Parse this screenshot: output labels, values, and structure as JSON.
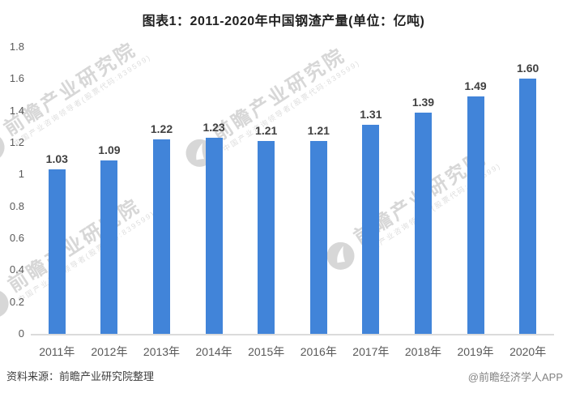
{
  "title": "图表1：2011-2020年中国钢渣产量(单位：亿吨)",
  "chart_data": {
    "type": "bar",
    "categories": [
      "2011年",
      "2012年",
      "2013年",
      "2014年",
      "2015年",
      "2016年",
      "2017年",
      "2018年",
      "2019年",
      "2020年"
    ],
    "values": [
      1.03,
      1.09,
      1.22,
      1.23,
      1.21,
      1.21,
      1.31,
      1.39,
      1.49,
      1.6
    ],
    "value_labels": [
      "1.03",
      "1.09",
      "1.22",
      "1.23",
      "1.21",
      "1.21",
      "1.31",
      "1.39",
      "1.49",
      "1.60"
    ],
    "title": "图表1：2011-2020年中国钢渣产量(单位：亿吨)",
    "xlabel": "",
    "ylabel": "",
    "ylim": [
      0,
      1.8
    ],
    "ytick_labels": [
      "0",
      "0.2",
      "0.4",
      "0.6",
      "0.8",
      "1",
      "1.2",
      "1.4",
      "1.6",
      "1.8"
    ],
    "grid": false,
    "legend": false,
    "bar_color": "#4184d9"
  },
  "watermark": {
    "main": "前瞻产业研究院",
    "sub": "中国产业咨询领导者(股票代码:839599)",
    "logo": "qianzhan-bird-logo"
  },
  "footer": {
    "source": "资料来源：前瞻产业研究院整理",
    "credit": "@前瞻经济学人APP"
  },
  "colors": {
    "bar": "#4184d9",
    "axis_line": "#dbdbdb",
    "value_label": "#404040",
    "tick_label": "#595959",
    "title": "#1f1f1f",
    "watermark": "#d7d7d7"
  }
}
